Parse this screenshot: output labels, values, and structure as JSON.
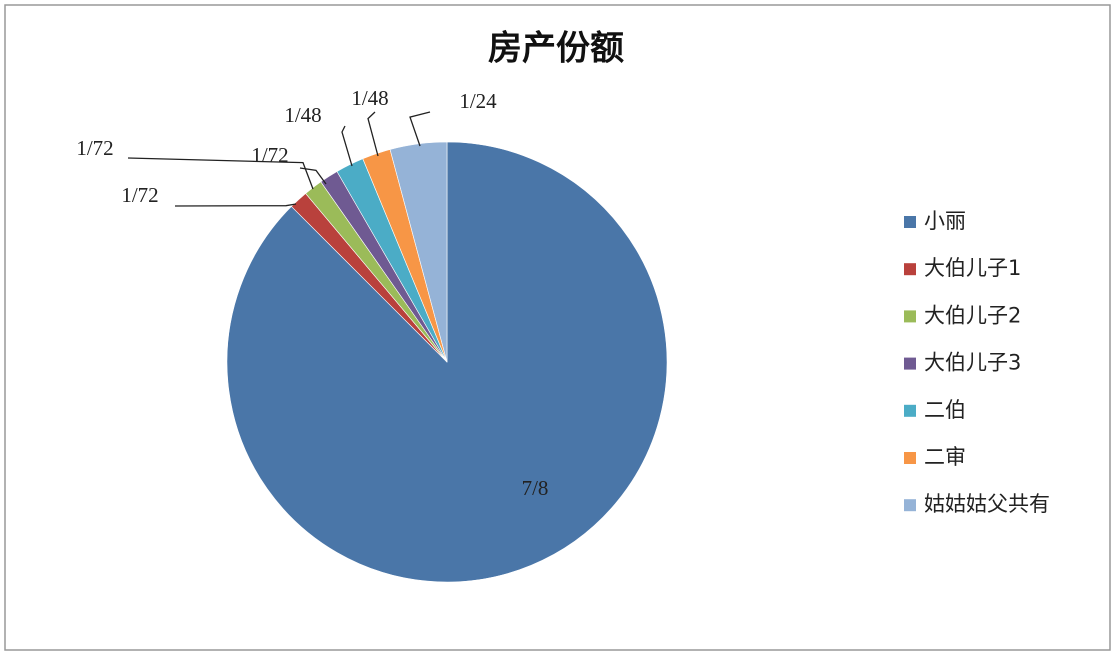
{
  "chart_data": {
    "type": "pie",
    "title": "房产份额",
    "categories": [
      "小丽",
      "大伯儿子1",
      "大伯儿子2",
      "大伯儿子3",
      "二伯",
      "二审",
      "姑姑姑父共有"
    ],
    "values": [
      0.875,
      0.013889,
      0.013889,
      0.013889,
      0.020833,
      0.020833,
      0.041667
    ],
    "value_labels": [
      "7/8",
      "1/72",
      "1/72",
      "1/72",
      "1/48",
      "1/48",
      "1/24"
    ],
    "colors": [
      "#4a76a8",
      "#b9413c",
      "#9bbb59",
      "#6f5a92",
      "#4bacc6",
      "#f79646",
      "#95b3d7"
    ],
    "legend": "right"
  }
}
